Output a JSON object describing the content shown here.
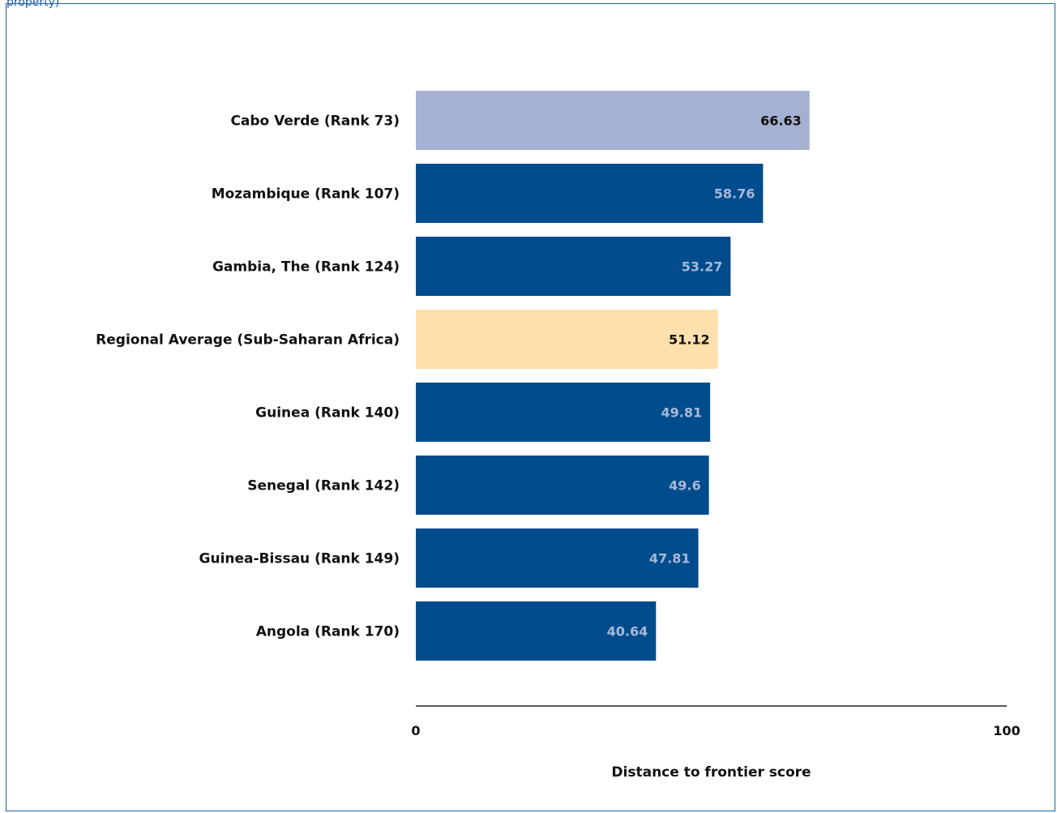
{
  "caption": "property)",
  "chart_data": {
    "type": "bar",
    "orientation": "horizontal",
    "categories": [
      "Cabo Verde (Rank 73)",
      "Mozambique (Rank 107)",
      "Gambia, The (Rank 124)",
      "Regional Average (Sub-Saharan Africa)",
      "Guinea (Rank 140)",
      "Senegal (Rank 142)",
      "Guinea-Bissau (Rank 149)",
      "Angola (Rank 170)"
    ],
    "values": [
      66.63,
      58.76,
      53.27,
      51.12,
      49.81,
      49.6,
      47.81,
      40.64
    ],
    "value_labels": [
      "66.63",
      "58.76",
      "53.27",
      "51.12",
      "49.81",
      "49.6",
      "47.81",
      "40.64"
    ],
    "bar_colors": [
      "#a5b1d2",
      "#004c8c",
      "#004c8c",
      "#fde0ac",
      "#004c8c",
      "#004c8c",
      "#004c8c",
      "#004c8c"
    ],
    "value_label_colors": [
      "#111111",
      "#a9b8d8",
      "#a9b8d8",
      "#111111",
      "#a9b8d8",
      "#a9b8d8",
      "#a9b8d8",
      "#a9b8d8"
    ],
    "xlim": [
      0,
      100
    ],
    "xticks": [
      "0",
      "100"
    ],
    "xlabel": "Distance to frontier score",
    "ylabel": "",
    "title": "",
    "grid": false
  }
}
